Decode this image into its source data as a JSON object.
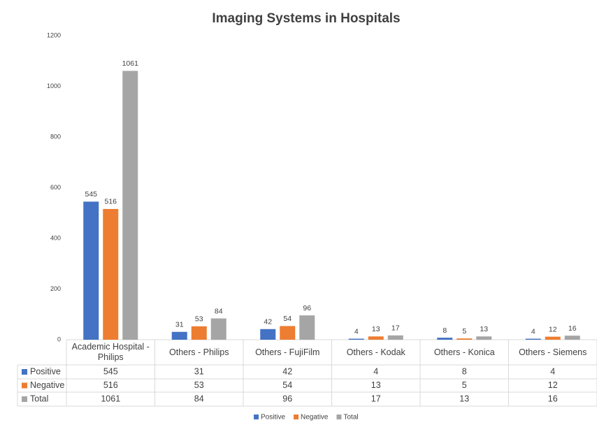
{
  "chart_data": {
    "type": "bar",
    "title": "Imaging Systems in Hospitals",
    "categories": [
      "Academic Hospital - Philips",
      "Others - Philips",
      "Others - FujiFilm",
      "Others - Kodak",
      "Others - Konica",
      "Others - Siemens"
    ],
    "series": [
      {
        "name": "Positive",
        "color": "#4472c4",
        "values": [
          545,
          31,
          42,
          4,
          8,
          4
        ]
      },
      {
        "name": "Negative",
        "color": "#ed7d31",
        "values": [
          516,
          53,
          54,
          13,
          5,
          12
        ]
      },
      {
        "name": "Total",
        "color": "#a5a5a5",
        "values": [
          1061,
          84,
          96,
          17,
          13,
          16
        ]
      }
    ],
    "ylim": [
      0,
      1200
    ],
    "yticks": [
      0,
      200,
      400,
      600,
      800,
      1000,
      1200
    ],
    "grid": false,
    "legend": "bottom"
  }
}
